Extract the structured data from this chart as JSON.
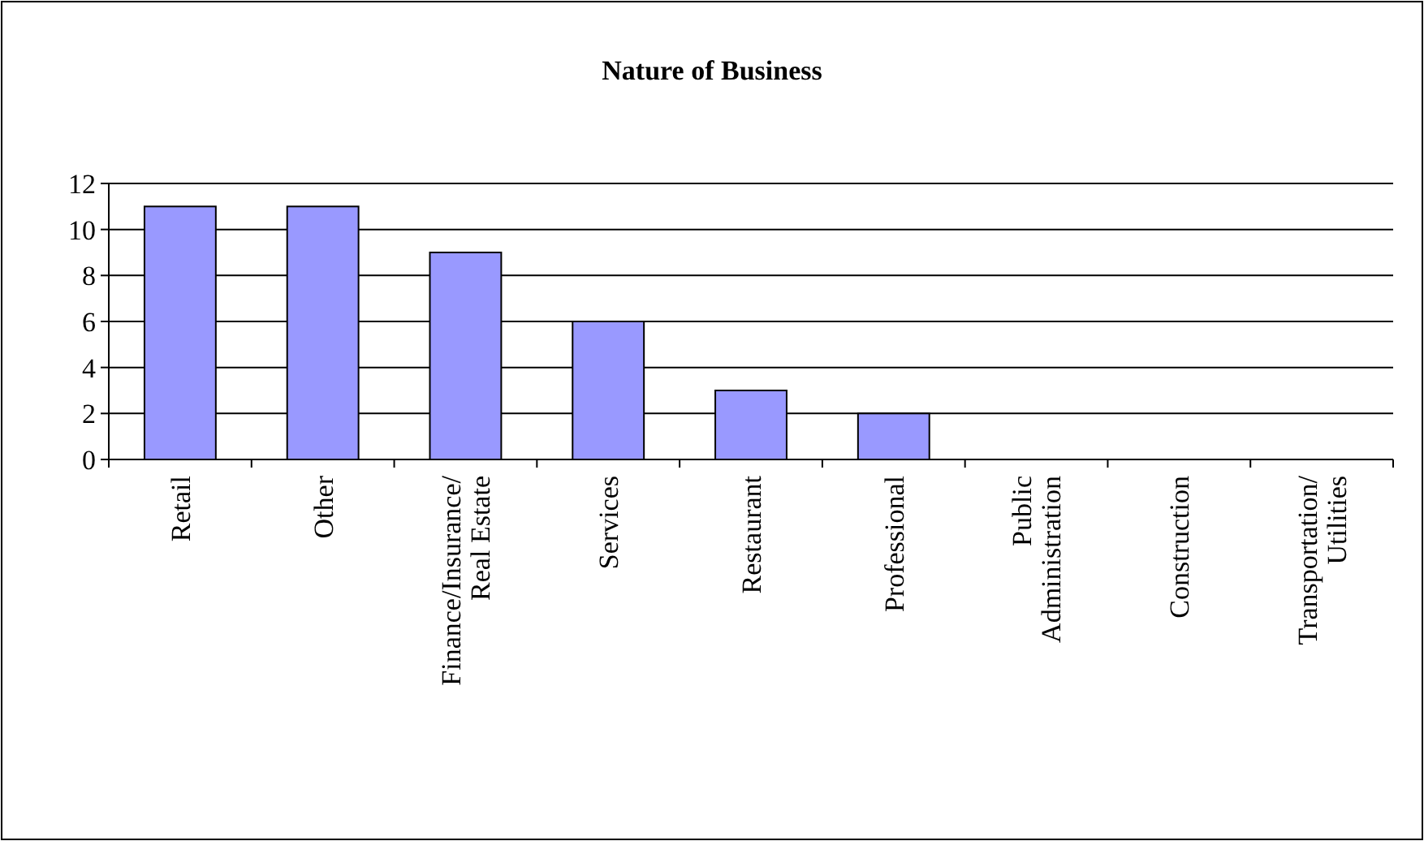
{
  "chart_data": {
    "type": "bar",
    "title": "Nature of Business",
    "categories": [
      "Retail",
      "Other",
      "Finance/Insurance/Real Estate",
      "Services",
      "Restaurant",
      "Professional",
      "Public Administration",
      "Construction",
      "Transportation/Utilities"
    ],
    "values": [
      11,
      11,
      9,
      6,
      3,
      2,
      0,
      0,
      0
    ],
    "color": "#9999ff",
    "ylim": [
      0,
      12
    ],
    "yticks": [
      0,
      2,
      4,
      6,
      8,
      10,
      12
    ],
    "grid": "y"
  }
}
